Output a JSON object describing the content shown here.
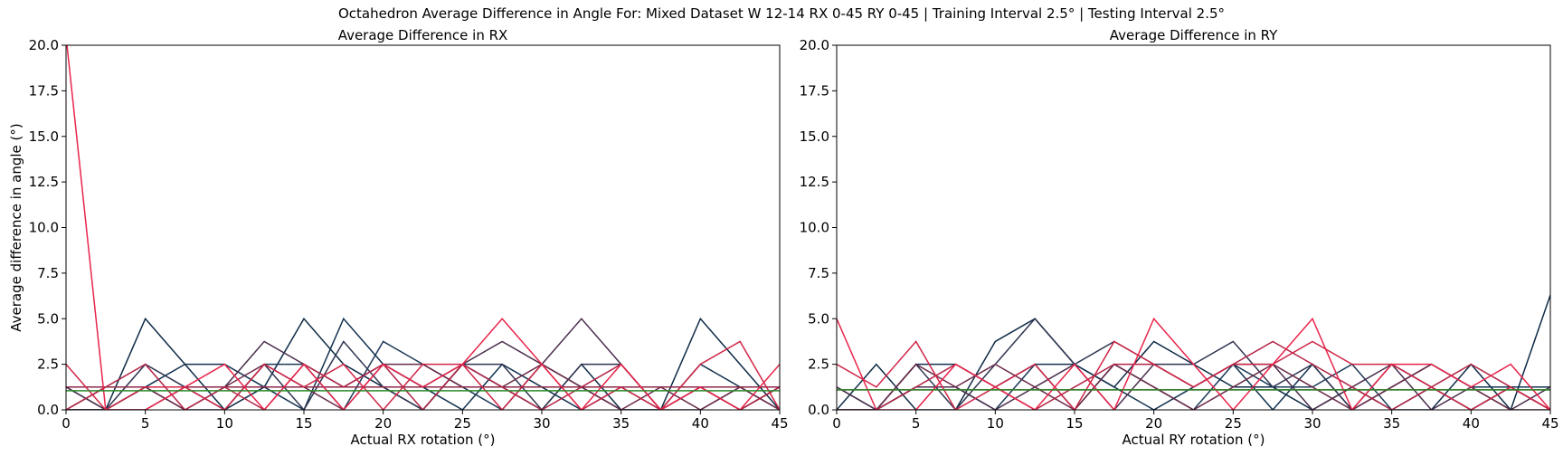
{
  "figure": {
    "suptitle": "Octahedron Average Difference in Angle For: Mixed Dataset W 12-14 RX 0-45 RY 0-45 | Training Interval 2.5° | Testing Interval 2.5°"
  },
  "chart_data": [
    {
      "type": "line",
      "title": "Average Difference in RX",
      "xlabel": "Actual RX rotation (°)",
      "ylabel": "Average difference in angle (°)",
      "xlim": [
        0,
        45
      ],
      "ylim": [
        0,
        20
      ],
      "xticks": [
        "0",
        "5",
        "10",
        "15",
        "20",
        "25",
        "30",
        "35",
        "40",
        "45"
      ],
      "yticks": [
        "0.0",
        "2.5",
        "5.0",
        "7.5",
        "10.0",
        "12.5",
        "15.0",
        "17.5",
        "20.0"
      ],
      "grid": false,
      "x": [
        0,
        2.5,
        5,
        7.5,
        10,
        12.5,
        15,
        17.5,
        20,
        22.5,
        25,
        27.5,
        30,
        32.5,
        35,
        37.5,
        40,
        42.5,
        45
      ],
      "series": [
        {
          "color": "#0d2a45",
          "values": [
            0,
            0,
            5.0,
            2.5,
            0,
            1.25,
            5.0,
            2.5,
            1.25,
            0,
            2.5,
            1.25,
            0,
            2.5,
            0,
            0,
            5.0,
            2.5,
            0
          ]
        },
        {
          "color": "#12324f",
          "values": [
            1.25,
            0,
            1.25,
            2.5,
            2.5,
            1.25,
            0,
            5.0,
            2.5,
            1.25,
            0,
            2.5,
            1.25,
            0,
            1.25,
            0,
            2.5,
            1.25,
            1.25
          ]
        },
        {
          "color": "#1d3a58",
          "values": [
            0,
            0,
            1.25,
            0,
            0,
            2.5,
            2.5,
            0,
            3.75,
            2.5,
            1.25,
            0,
            2.5,
            1.25,
            0,
            0,
            1.25,
            0,
            1.25
          ]
        },
        {
          "color": "#2f3551",
          "values": [
            0,
            0,
            2.5,
            1.25,
            0,
            2.5,
            0,
            3.75,
            1.25,
            0,
            2.5,
            2.5,
            0,
            2.5,
            2.5,
            0,
            0,
            1.25,
            0
          ]
        },
        {
          "color": "#4a2e4c",
          "values": [
            1.25,
            0,
            0,
            1.25,
            1.25,
            3.75,
            2.5,
            1.25,
            2.5,
            1.25,
            2.5,
            3.75,
            2.5,
            5.0,
            2.5,
            0,
            1.25,
            0,
            1.25
          ]
        },
        {
          "color": "#6a2a48",
          "values": [
            0,
            1.25,
            1.25,
            0,
            1.25,
            2.5,
            1.25,
            0,
            2.5,
            2.5,
            1.25,
            1.25,
            2.5,
            1.25,
            0,
            1.25,
            0,
            1.25,
            0
          ]
        },
        {
          "color": "#8e2647",
          "values": [
            1.25,
            1.25,
            1.25,
            1.25,
            1.25,
            1.25,
            1.25,
            1.25,
            1.25,
            1.25,
            1.25,
            1.25,
            1.25,
            1.25,
            1.25,
            1.25,
            1.25,
            1.25,
            1.25
          ]
        },
        {
          "color": "#b22446",
          "values": [
            0,
            1.25,
            2.5,
            0,
            1.25,
            0,
            2.5,
            1.25,
            2.5,
            0,
            2.5,
            1.25,
            0,
            1.25,
            2.5,
            0,
            1.25,
            0,
            1.25
          ]
        },
        {
          "color": "#d02547",
          "values": [
            2.5,
            0,
            1.25,
            1.25,
            0,
            2.5,
            1.25,
            2.5,
            0,
            2.5,
            2.5,
            0,
            2.5,
            0,
            1.25,
            0,
            2.5,
            3.75,
            0
          ]
        },
        {
          "color": "#e8244a",
          "values": [
            20.5,
            0,
            0,
            1.25,
            2.5,
            0,
            2.5,
            0,
            2.5,
            1.25,
            2.5,
            5.0,
            2.5,
            0,
            2.5,
            0,
            1.25,
            0,
            2.5
          ]
        },
        {
          "color": "#2a8a2a",
          "values": [
            1.05,
            1.05,
            1.05,
            1.05,
            1.05,
            1.05,
            1.05,
            1.05,
            1.05,
            1.05,
            1.05,
            1.05,
            1.05,
            1.05,
            1.05,
            1.05,
            1.05,
            1.05,
            1.05
          ]
        }
      ]
    },
    {
      "type": "line",
      "title": "Average Difference in RY",
      "xlabel": "Actual RY rotation (°)",
      "ylabel": "",
      "xlim": [
        0,
        45
      ],
      "ylim": [
        0,
        20
      ],
      "xticks": [
        "0",
        "5",
        "10",
        "15",
        "20",
        "25",
        "30",
        "35",
        "40",
        "45"
      ],
      "yticks": [
        "0.0",
        "2.5",
        "5.0",
        "7.5",
        "10.0",
        "12.5",
        "15.0",
        "17.5",
        "20.0"
      ],
      "grid": false,
      "x": [
        0,
        2.5,
        5,
        7.5,
        10,
        12.5,
        15,
        17.5,
        20,
        22.5,
        25,
        27.5,
        30,
        32.5,
        35,
        37.5,
        40,
        42.5,
        45
      ],
      "series": [
        {
          "color": "#0d2a45",
          "values": [
            0,
            2.5,
            0,
            0,
            3.75,
            5.0,
            2.5,
            1.25,
            3.75,
            2.5,
            1.25,
            1.25,
            0,
            1.25,
            0,
            0,
            2.5,
            0,
            6.3
          ]
        },
        {
          "color": "#12324f",
          "values": [
            1.25,
            0,
            2.5,
            2.5,
            1.25,
            2.5,
            2.5,
            1.25,
            0,
            1.25,
            2.5,
            0,
            2.5,
            0,
            1.25,
            2.5,
            1.25,
            1.25,
            1.25
          ]
        },
        {
          "color": "#1d3a58",
          "values": [
            0,
            0,
            1.25,
            1.25,
            0,
            2.5,
            0,
            2.5,
            1.25,
            0,
            2.5,
            1.25,
            1.25,
            2.5,
            0,
            1.25,
            0,
            1.25,
            0
          ]
        },
        {
          "color": "#2f3551",
          "values": [
            0,
            0,
            2.5,
            0,
            2.5,
            5.0,
            2.5,
            3.75,
            2.5,
            2.5,
            3.75,
            1.25,
            2.5,
            0,
            2.5,
            1.25,
            0,
            1.25,
            0
          ]
        },
        {
          "color": "#4a2e4c",
          "values": [
            1.25,
            0,
            1.25,
            1.25,
            0,
            1.25,
            2.5,
            0,
            2.5,
            1.25,
            2.5,
            2.5,
            0,
            1.25,
            2.5,
            0,
            1.25,
            0,
            1.25
          ]
        },
        {
          "color": "#6a2a48",
          "values": [
            0,
            0,
            2.5,
            1.25,
            2.5,
            1.25,
            0,
            2.5,
            1.25,
            0,
            1.25,
            2.5,
            1.25,
            0,
            1.25,
            2.5,
            1.25,
            0,
            0
          ]
        },
        {
          "color": "#8e2647",
          "values": [
            1.1,
            1.1,
            1.1,
            1.1,
            1.1,
            1.1,
            1.1,
            1.1,
            1.1,
            1.1,
            1.1,
            1.1,
            1.1,
            1.1,
            1.1,
            1.1,
            1.1,
            1.1,
            1.1
          ]
        },
        {
          "color": "#b22446",
          "values": [
            0,
            0,
            1.25,
            2.5,
            1.25,
            0,
            1.25,
            2.5,
            2.5,
            1.25,
            2.5,
            3.75,
            2.5,
            1.25,
            0,
            1.25,
            2.5,
            1.25,
            0
          ]
        },
        {
          "color": "#d02547",
          "values": [
            2.5,
            1.25,
            3.75,
            0,
            1.25,
            2.5,
            0,
            3.75,
            2.5,
            1.25,
            2.5,
            2.5,
            3.75,
            2.5,
            2.5,
            1.25,
            0,
            1.25,
            0
          ]
        },
        {
          "color": "#e8244a",
          "values": [
            5.0,
            0,
            0,
            2.5,
            1.25,
            0,
            2.5,
            0,
            5.0,
            2.5,
            0,
            2.5,
            5.0,
            0,
            2.5,
            2.5,
            1.25,
            2.5,
            0
          ]
        },
        {
          "color": "#2a8a2a",
          "values": [
            1.1,
            1.1,
            1.1,
            1.1,
            1.1,
            1.1,
            1.1,
            1.1,
            1.1,
            1.1,
            1.1,
            1.1,
            1.1,
            1.1,
            1.1,
            1.1,
            1.1,
            1.1,
            1.1
          ]
        }
      ]
    }
  ]
}
